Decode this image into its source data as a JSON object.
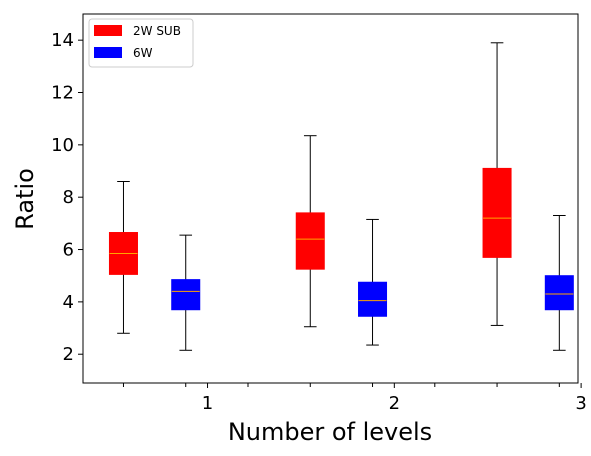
{
  "chart_data": {
    "type": "box",
    "xlabel": "Number of levels",
    "ylabel": "Ratio",
    "categories": [
      "1",
      "2",
      "3"
    ],
    "ylim": [
      0.9,
      15.0
    ],
    "yticks": [
      2,
      4,
      6,
      8,
      10,
      12,
      14
    ],
    "legend_position": "top-left",
    "grid": false,
    "median_color": "#ffa500",
    "series": [
      {
        "name": "2W SUB",
        "color": "#ff0000",
        "boxes": [
          {
            "category": "1",
            "whisker_low": 2.8,
            "q1": 5.05,
            "median": 5.85,
            "q3": 6.65,
            "whisker_high": 8.6
          },
          {
            "category": "2",
            "whisker_low": 3.05,
            "q1": 5.25,
            "median": 6.4,
            "q3": 7.4,
            "whisker_high": 10.35
          },
          {
            "category": "3",
            "whisker_low": 3.1,
            "q1": 5.7,
            "median": 7.2,
            "q3": 9.1,
            "whisker_high": 13.9
          }
        ]
      },
      {
        "name": "6W",
        "color": "#0000ff",
        "boxes": [
          {
            "category": "1",
            "whisker_low": 2.15,
            "q1": 3.7,
            "median": 4.4,
            "q3": 4.85,
            "whisker_high": 6.55
          },
          {
            "category": "2",
            "whisker_low": 2.35,
            "q1": 3.45,
            "median": 4.05,
            "q3": 4.75,
            "whisker_high": 7.15
          },
          {
            "category": "3",
            "whisker_low": 2.15,
            "q1": 3.7,
            "median": 4.3,
            "q3": 5.0,
            "whisker_high": 7.3
          }
        ]
      }
    ]
  }
}
